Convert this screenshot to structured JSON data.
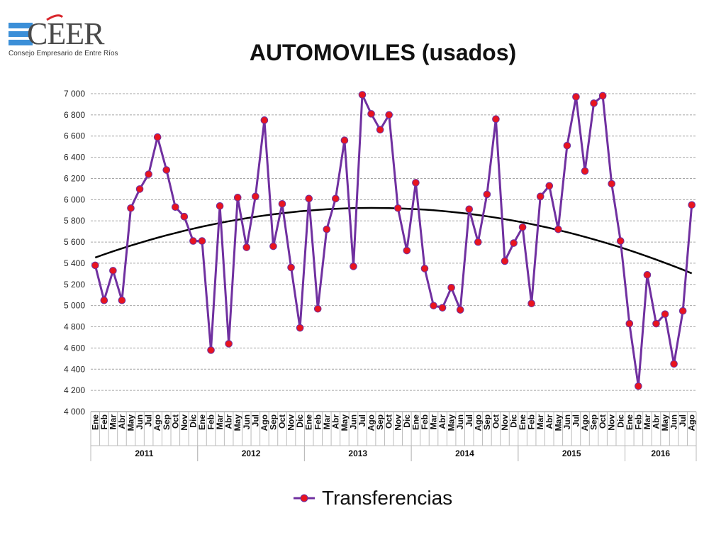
{
  "logo": {
    "name": "CEER",
    "subtitle": "Consejo Empresario de Entre Ríos"
  },
  "colors": {
    "series": "#7030a0",
    "marker": "#e8141f",
    "trend": "#000000",
    "grid": "#a6a6a6",
    "logo_red": "#d9262c",
    "logo_blue": "#3b8fd8"
  },
  "chart_data": {
    "type": "line",
    "title": "AUTOMOVILES (usados)",
    "xlabel": "",
    "ylabel": "",
    "ylim": [
      4000,
      7000
    ],
    "yticks": [
      4000,
      4200,
      4400,
      4600,
      4800,
      5000,
      5200,
      5400,
      5600,
      5800,
      6000,
      6200,
      6400,
      6600,
      6800,
      7000
    ],
    "ytick_labels": [
      "4 000",
      "4 200",
      "4 400",
      "4 600",
      "4 800",
      "5 000",
      "5 200",
      "5 400",
      "5 600",
      "5 800",
      "6 000",
      "6 200",
      "6 400",
      "6 600",
      "6 800",
      "7 000"
    ],
    "grid": true,
    "legend_position": "bottom",
    "years": [
      {
        "label": "2011",
        "months": 12
      },
      {
        "label": "2012",
        "months": 12
      },
      {
        "label": "2013",
        "months": 12
      },
      {
        "label": "2014",
        "months": 12
      },
      {
        "label": "2015",
        "months": 12
      },
      {
        "label": "2016",
        "months": 8
      }
    ],
    "categories": [
      "Ene",
      "Feb",
      "Mar",
      "Abr",
      "May",
      "Jun",
      "Jul",
      "Ago",
      "Sep",
      "Oct",
      "Nov",
      "Dic",
      "Ene",
      "Feb",
      "Mar",
      "Abr",
      "May",
      "Jun",
      "Jul",
      "Ago",
      "Sep",
      "Oct",
      "Nov",
      "Dic",
      "Ene",
      "Feb",
      "Mar",
      "Abr",
      "May",
      "Jun",
      "Jul",
      "Ago",
      "Sep",
      "Oct",
      "Nov",
      "Dic",
      "Ene",
      "Feb",
      "Mar",
      "Abr",
      "May",
      "Jun",
      "Jul",
      "Ago",
      "Sep",
      "Oct",
      "Nov",
      "Dic",
      "Ene",
      "Feb",
      "Mar",
      "Abr",
      "May",
      "Jun",
      "Jul",
      "Ago",
      "Sep",
      "Oct",
      "Nov",
      "Dic",
      "Ene",
      "Feb",
      "Mar",
      "Abr",
      "May",
      "Jun",
      "Jul",
      "Ago"
    ],
    "series": [
      {
        "name": "Transferencias",
        "values": [
          5380,
          5050,
          5330,
          5050,
          5920,
          6100,
          6240,
          6590,
          6280,
          5930,
          5840,
          5610,
          5610,
          4580,
          5940,
          4640,
          6020,
          5550,
          6030,
          6750,
          5560,
          5960,
          5360,
          4790,
          6010,
          4970,
          5720,
          6010,
          6560,
          5370,
          6990,
          6810,
          6660,
          6800,
          5920,
          5520,
          6160,
          5350,
          5000,
          4980,
          5170,
          4960,
          5910,
          5600,
          6050,
          6760,
          5420,
          5590,
          5740,
          5020,
          6030,
          6130,
          5720,
          6510,
          6970,
          6270,
          6910,
          6980,
          6150,
          5610,
          4830,
          4240,
          5290,
          4830,
          4920,
          4450,
          4950,
          5950
        ]
      }
    ],
    "trendline": {
      "type": "polynomial",
      "order": 2,
      "shown_in_legend": false
    }
  }
}
